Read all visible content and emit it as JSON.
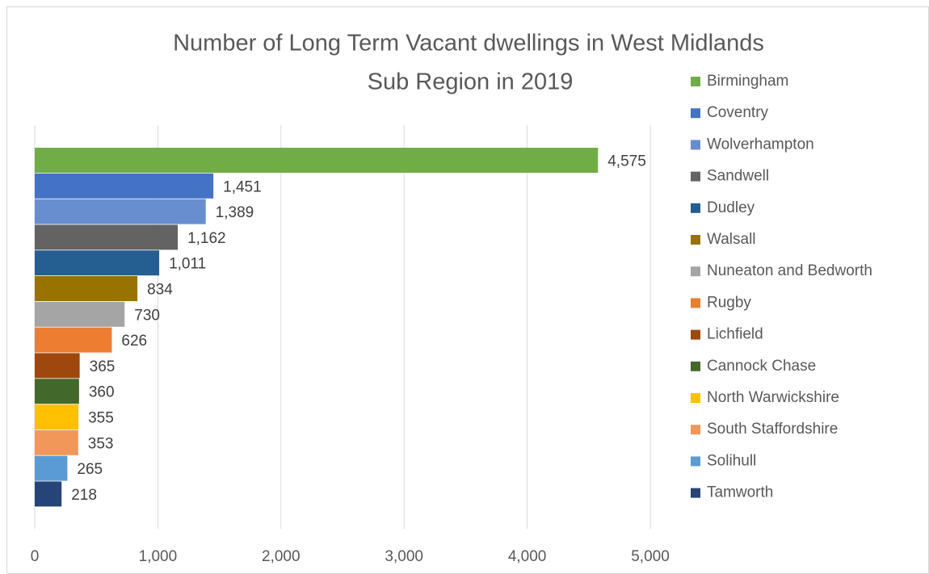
{
  "chart_data": {
    "type": "bar",
    "orientation": "horizontal",
    "title": [
      "Number of Long Term Vacant dwellings in West Midlands",
      "Sub Region in 2019"
    ],
    "categories": [
      "Birmingham",
      "Coventry",
      "Wolverhampton",
      "Sandwell",
      "Dudley",
      "Walsall",
      "Nuneaton and Bedworth",
      "Rugby",
      "Lichfield",
      "Cannock Chase",
      "North Warwickshire",
      "South Staffordshire",
      "Solihull",
      "Tamworth"
    ],
    "values": [
      4575,
      1451,
      1389,
      1162,
      1011,
      834,
      730,
      626,
      365,
      360,
      355,
      353,
      265,
      218
    ],
    "value_labels": [
      "4,575",
      "1,451",
      "1,389",
      "1,162",
      "1,011",
      "834",
      "730",
      "626",
      "365",
      "360",
      "355",
      "353",
      "265",
      "218"
    ],
    "colors": [
      "#70ad47",
      "#4472c4",
      "#698ed0",
      "#636363",
      "#255e91",
      "#997300",
      "#a5a5a5",
      "#ed7d31",
      "#9e480e",
      "#43682b",
      "#ffc000",
      "#f1975a",
      "#5b9bd5",
      "#264478"
    ],
    "xlim": [
      0,
      5000
    ],
    "xticks": [
      0,
      {
        "value": 1000,
        "label": "1,000"
      },
      {
        "value": 2000,
        "label": "2,000"
      },
      {
        "value": 3000,
        "label": "3,000"
      },
      {
        "value": 4000,
        "label": "4,000"
      },
      {
        "value": 5000,
        "label": "5,000"
      }
    ],
    "grid": true,
    "legend": "right"
  }
}
